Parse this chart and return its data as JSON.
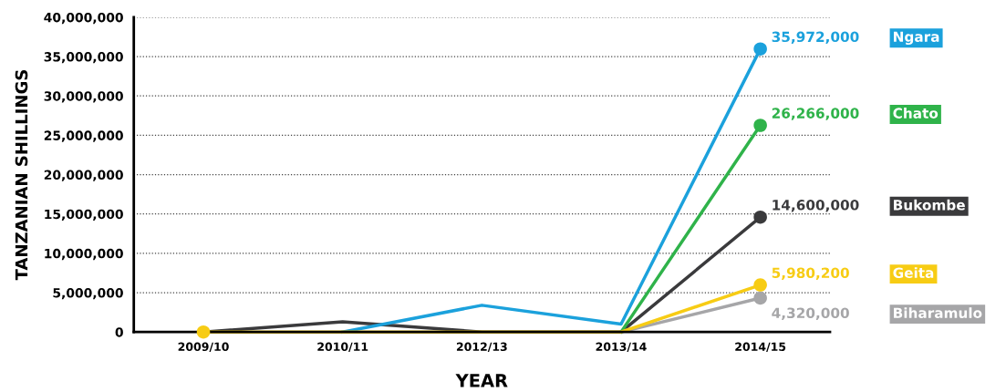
{
  "chart_data": {
    "type": "line",
    "xlabel": "YEAR",
    "ylabel": "TANZANIAN SHILLINGS",
    "categories": [
      "2009/10",
      "2010/11",
      "2012/13",
      "2013/14",
      "2014/15"
    ],
    "series": [
      {
        "name": "Biharamulo",
        "color": "#a6a6a8",
        "values": [
          null,
          null,
          null,
          0,
          4320000
        ],
        "value_labels": [
          null,
          null,
          null,
          null,
          "4,320,000"
        ]
      },
      {
        "name": "Bukombe",
        "color": "#3a3a3c",
        "values": [
          0,
          1300000,
          0,
          0,
          14600000
        ],
        "value_labels": [
          null,
          null,
          null,
          null,
          "14,600,000"
        ]
      },
      {
        "name": "Chato",
        "color": "#2fb34a",
        "values": [
          null,
          null,
          null,
          0,
          26266000
        ],
        "value_labels": [
          null,
          null,
          null,
          null,
          "26,266,000"
        ]
      },
      {
        "name": "Ngara",
        "color": "#1ba1dc",
        "values": [
          null,
          0,
          3400000,
          1000000,
          35972000
        ],
        "value_labels": [
          null,
          null,
          null,
          null,
          "35,972,000"
        ]
      },
      {
        "name": "Geita",
        "color": "#f7cc14",
        "values": [
          0,
          0,
          0,
          0,
          5980200
        ],
        "value_labels": [
          null,
          null,
          null,
          null,
          "5,980,200"
        ]
      },
      {
        "type": "scatter",
        "x": [
          "2014/15",
          "2014/15",
          "2014/15",
          "2014/15",
          "2014/15",
          "2009/10"
        ],
        "values": [
          4320000,
          14600000,
          26266000,
          35972000,
          5980200,
          0
        ],
        "colors": [
          "#a6a6a8",
          "#3a3a3c",
          "#2fb34a",
          "#1ba1dc",
          "#f7cc14",
          "#f7cc14"
        ]
      }
    ],
    "ylim": [
      0,
      40000000
    ],
    "yticks": [
      0,
      {
        "value": 5000000,
        "label": "5,000,000"
      },
      {
        "value": 10000000,
        "label": "10,000,000"
      },
      {
        "value": 15000000,
        "label": "15,000,000"
      },
      {
        "value": 20000000,
        "label": "20,000,000"
      },
      {
        "value": 25000000,
        "label": "25,000,000"
      },
      {
        "value": 30000000,
        "label": "30,000,000"
      },
      {
        "value": 35000000,
        "label": "35,000,000"
      },
      {
        "value": 40000000,
        "label": "40,000,000"
      }
    ],
    "grid": "y",
    "legend": false,
    "line_style": "solid"
  }
}
